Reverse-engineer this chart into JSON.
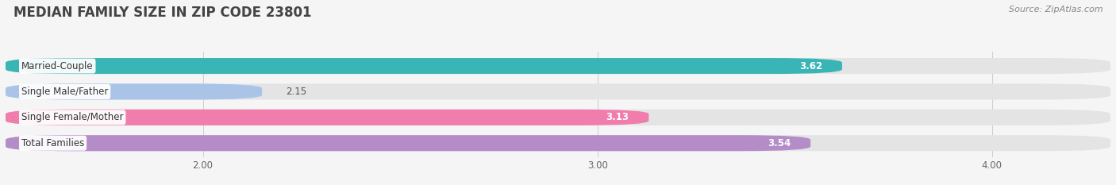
{
  "title": "MEDIAN FAMILY SIZE IN ZIP CODE 23801",
  "source": "Source: ZipAtlas.com",
  "categories": [
    "Married-Couple",
    "Single Male/Father",
    "Single Female/Mother",
    "Total Families"
  ],
  "values": [
    3.62,
    2.15,
    3.13,
    3.54
  ],
  "colors": [
    "#3ab5b5",
    "#aac4e8",
    "#f07dab",
    "#b48dc8"
  ],
  "bar_height": 0.62,
  "xmin": 1.5,
  "xlim": [
    1.5,
    4.3
  ],
  "xticks": [
    2.0,
    3.0,
    4.0
  ],
  "background_color": "#f5f5f5",
  "bar_bg_color": "#e4e4e4",
  "title_fontsize": 12,
  "label_fontsize": 8.5,
  "value_fontsize": 8.5,
  "source_fontsize": 8
}
